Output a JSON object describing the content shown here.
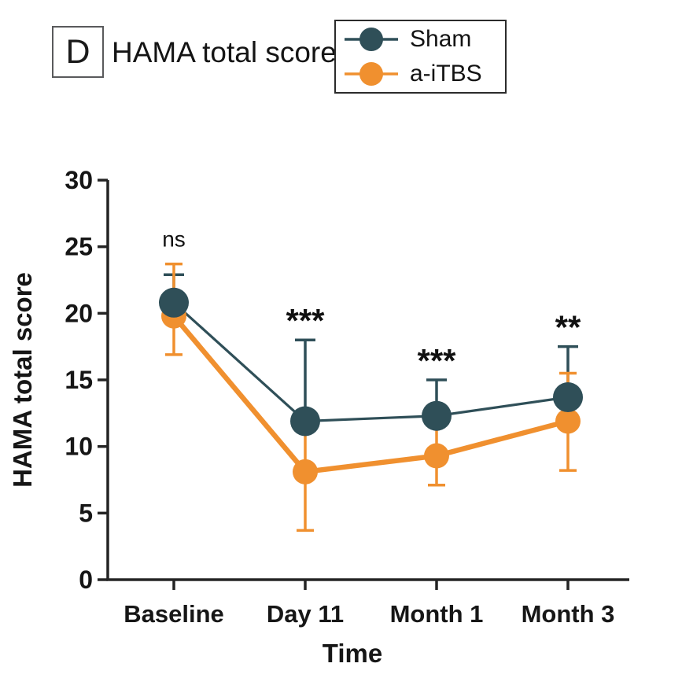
{
  "header": {
    "panel_label": "D",
    "title": "HAMA total score"
  },
  "legend": {
    "items": [
      {
        "label": "Sham",
        "color": "#2F4F58"
      },
      {
        "label": "a-iTBS",
        "color": "#F0902F"
      }
    ]
  },
  "chart_data": {
    "type": "line",
    "title": "HAMA total score",
    "categories": [
      "Baseline",
      "Day 11",
      "Month 1",
      "Month 3"
    ],
    "xlabel": "Time",
    "ylabel": "HAMA  total score",
    "ylim": [
      0,
      30
    ],
    "yticks": [
      0,
      5,
      10,
      15,
      20,
      25,
      30
    ],
    "grid": false,
    "legend_position": "top-right",
    "axis_color": "#242424",
    "series": [
      {
        "name": "Sham",
        "color": "#2F4F58",
        "values": [
          20.8,
          11.9,
          12.3,
          13.7
        ],
        "err_up": [
          2.1,
          6.1,
          2.7,
          3.8
        ],
        "err_down": [
          0,
          0,
          0,
          0
        ]
      },
      {
        "name": "a-iTBS",
        "color": "#F0902F",
        "values": [
          19.8,
          8.1,
          9.3,
          11.9
        ],
        "err_up": [
          3.9,
          4.4,
          2.2,
          3.6
        ],
        "err_down": [
          2.9,
          4.4,
          2.2,
          3.7
        ]
      }
    ],
    "significance_by_category": [
      "ns",
      "***",
      "***",
      "**"
    ]
  }
}
